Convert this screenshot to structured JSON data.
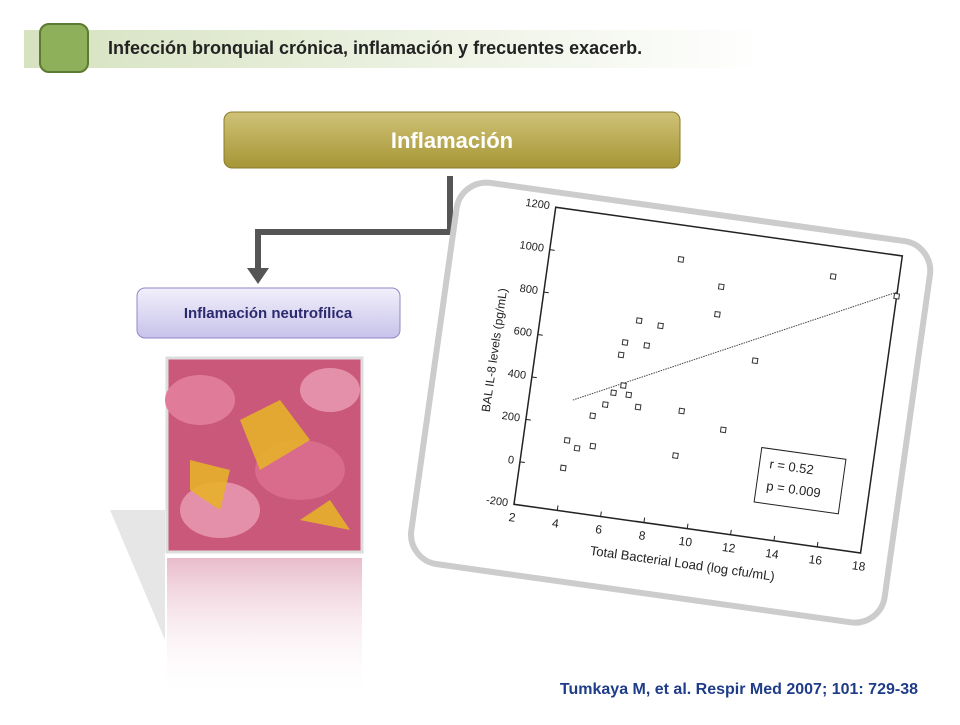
{
  "header": {
    "title": "Infección bronquial crónica, inflamación y frecuentes exacerb."
  },
  "nodes": [
    {
      "label": "Inflamación"
    },
    {
      "label": "Inflamación neutrofílica"
    }
  ],
  "citation": "Tumkaya M, et al. Respir Med 2007; 101: 729-38",
  "chart_data": {
    "type": "scatter",
    "x_label": "Total Bacterial Load (log cfu/mL)",
    "y_label": "BAL IL-8 levels (pg/mL)",
    "x": [
      4,
      4,
      4.5,
      5,
      5.2,
      5.5,
      5.8,
      5.9,
      6,
      6.2,
      6.5,
      6.5,
      7,
      7,
      7.5,
      8,
      9,
      9,
      10,
      10,
      11,
      12,
      15,
      18
    ],
    "values": [
      0,
      130,
      100,
      260,
      120,
      320,
      380,
      560,
      620,
      420,
      380,
      730,
      620,
      330,
      720,
      1040,
      130,
      340,
      940,
      810,
      280,
      620,
      1060,
      1010
    ],
    "fit_line": {
      "x": [
        4,
        18
      ],
      "y": [
        320,
        1030
      ]
    },
    "annotations": [
      "r = 0.52",
      "p = 0.009"
    ],
    "xlim": [
      2,
      18
    ],
    "ylim": [
      -200,
      1200
    ],
    "xticks": [
      2,
      4,
      6,
      8,
      10,
      12,
      14,
      16,
      18
    ],
    "yticks": [
      -200,
      0,
      200,
      400,
      600,
      800,
      1000,
      1200
    ],
    "color": "#333333"
  }
}
